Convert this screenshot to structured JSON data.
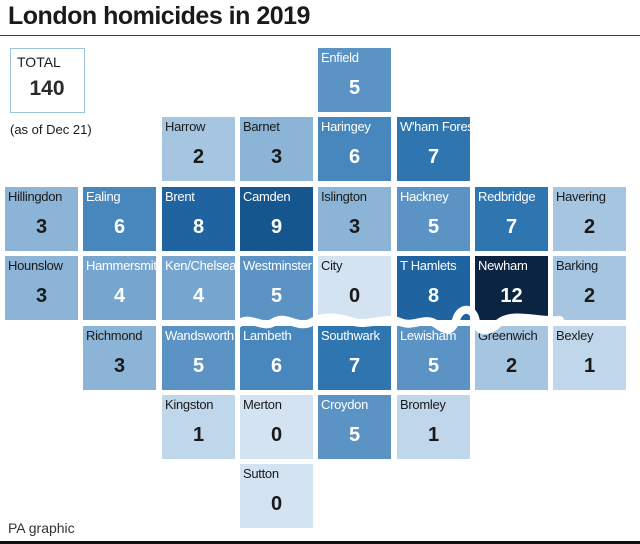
{
  "title": "London homicides in 2019",
  "total": {
    "label": "TOTAL",
    "value": "140",
    "note": "(as of Dec 21)"
  },
  "footer": "PA graphic",
  "color_scale": {
    "0": "#d3e3f1",
    "1": "#c0d6ea",
    "2": "#a5c5e0",
    "3": "#8bb4d6",
    "4": "#76a6cf",
    "5": "#5a93c4",
    "6": "#4787bd",
    "7": "#2f76b0",
    "8": "#1f64a1",
    "9": "#16568f",
    "12": "#0b2442"
  },
  "boroughs": [
    {
      "name": "Enfield",
      "value": "5"
    },
    {
      "name": "Harrow",
      "value": "2"
    },
    {
      "name": "Barnet",
      "value": "3"
    },
    {
      "name": "Haringey",
      "value": "6"
    },
    {
      "name": "W'ham Forest",
      "value": "7"
    },
    {
      "name": "Hillingdon",
      "value": "3"
    },
    {
      "name": "Ealing",
      "value": "6"
    },
    {
      "name": "Brent",
      "value": "8"
    },
    {
      "name": "Camden",
      "value": "9"
    },
    {
      "name": "Islington",
      "value": "3"
    },
    {
      "name": "Hackney",
      "value": "5"
    },
    {
      "name": "Redbridge",
      "value": "7"
    },
    {
      "name": "Havering",
      "value": "2"
    },
    {
      "name": "Hounslow",
      "value": "3"
    },
    {
      "name": "Hammersmith",
      "value": "4"
    },
    {
      "name": "Ken/Chelsea",
      "value": "4"
    },
    {
      "name": "Westminster",
      "value": "5"
    },
    {
      "name": "City",
      "value": "0"
    },
    {
      "name": "T Hamlets",
      "value": "8"
    },
    {
      "name": "Newham",
      "value": "12"
    },
    {
      "name": "Barking",
      "value": "2"
    },
    {
      "name": "Richmond",
      "value": "3"
    },
    {
      "name": "Wandsworth",
      "value": "5"
    },
    {
      "name": "Lambeth",
      "value": "6"
    },
    {
      "name": "Southwark",
      "value": "7"
    },
    {
      "name": "Lewisham",
      "value": "5"
    },
    {
      "name": "Greenwich",
      "value": "2"
    },
    {
      "name": "Bexley",
      "value": "1"
    },
    {
      "name": "Kingston",
      "value": "1"
    },
    {
      "name": "Merton",
      "value": "0"
    },
    {
      "name": "Croydon",
      "value": "5"
    },
    {
      "name": "Bromley",
      "value": "1"
    },
    {
      "name": "Sutton",
      "value": "0"
    }
  ]
}
